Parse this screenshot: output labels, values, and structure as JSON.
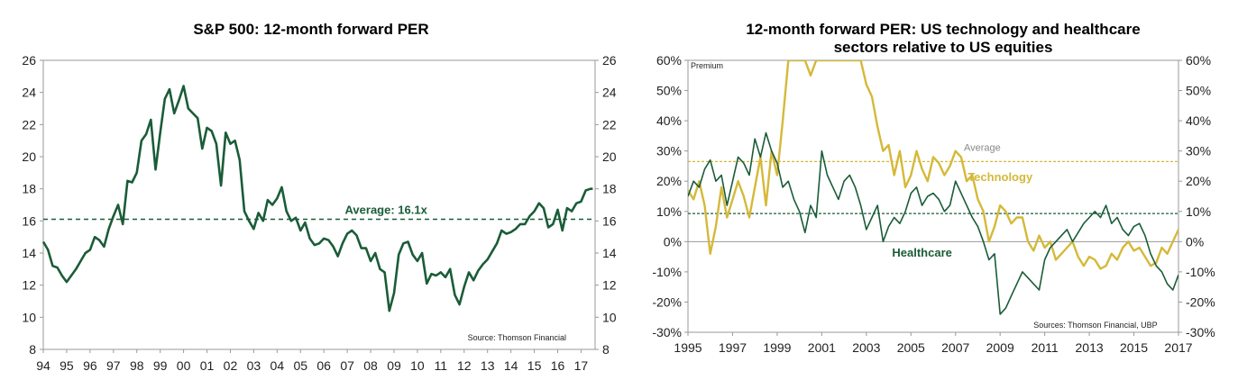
{
  "chart_data": [
    {
      "type": "line",
      "title": "S&P 500: 12-month forward PER",
      "xlabel": "",
      "ylabel": "",
      "ylim": [
        8,
        26
      ],
      "yticks": [
        8,
        10,
        12,
        14,
        16,
        18,
        20,
        22,
        24,
        26
      ],
      "xlim": [
        1994,
        2017.6
      ],
      "xtick_labels": [
        "94",
        "95",
        "96",
        "97",
        "98",
        "99",
        "00",
        "01",
        "02",
        "03",
        "04",
        "05",
        "06",
        "07",
        "08",
        "09",
        "10",
        "11",
        "12",
        "13",
        "14",
        "15",
        "16",
        "17"
      ],
      "average_label": "Average: 16.1x",
      "average_value": 16.1,
      "source": "Source: Thomson Financial",
      "colors": {
        "line": "#1a5c38",
        "average": "#1a5c38"
      },
      "series": [
        {
          "name": "S&P 500 12-month forward PER",
          "x": [
            1994.0,
            1994.2,
            1994.4,
            1994.6,
            1994.8,
            1995.0,
            1995.2,
            1995.4,
            1995.6,
            1995.8,
            1996.0,
            1996.2,
            1996.4,
            1996.6,
            1996.8,
            1997.0,
            1997.2,
            1997.4,
            1997.6,
            1997.8,
            1998.0,
            1998.2,
            1998.4,
            1998.6,
            1998.8,
            1999.0,
            1999.2,
            1999.4,
            1999.6,
            1999.8,
            2000.0,
            2000.2,
            2000.4,
            2000.6,
            2000.8,
            2001.0,
            2001.2,
            2001.4,
            2001.6,
            2001.8,
            2002.0,
            2002.2,
            2002.4,
            2002.6,
            2002.8,
            2003.0,
            2003.2,
            2003.4,
            2003.6,
            2003.8,
            2004.0,
            2004.2,
            2004.4,
            2004.6,
            2004.8,
            2005.0,
            2005.2,
            2005.4,
            2005.6,
            2005.8,
            2006.0,
            2006.2,
            2006.4,
            2006.6,
            2006.8,
            2007.0,
            2007.2,
            2007.4,
            2007.6,
            2007.8,
            2008.0,
            2008.2,
            2008.4,
            2008.6,
            2008.8,
            2009.0,
            2009.2,
            2009.4,
            2009.6,
            2009.8,
            2010.0,
            2010.2,
            2010.4,
            2010.6,
            2010.8,
            2011.0,
            2011.2,
            2011.4,
            2011.6,
            2011.8,
            2012.0,
            2012.2,
            2012.4,
            2012.6,
            2012.8,
            2013.0,
            2013.2,
            2013.4,
            2013.6,
            2013.8,
            2014.0,
            2014.2,
            2014.4,
            2014.6,
            2014.8,
            2015.0,
            2015.2,
            2015.4,
            2015.6,
            2015.8,
            2016.0,
            2016.2,
            2016.4,
            2016.6,
            2016.8,
            2017.0,
            2017.2,
            2017.4,
            2017.5
          ],
          "values": [
            14.7,
            14.2,
            13.2,
            13.1,
            12.6,
            12.2,
            12.6,
            13.0,
            13.5,
            14.0,
            14.2,
            15.0,
            14.8,
            14.4,
            15.5,
            16.3,
            17.0,
            15.8,
            18.5,
            18.4,
            19.0,
            21.0,
            21.4,
            22.3,
            19.2,
            21.5,
            23.6,
            24.2,
            22.7,
            23.5,
            24.4,
            23.0,
            22.7,
            22.4,
            20.5,
            21.8,
            21.6,
            20.8,
            18.2,
            21.5,
            20.8,
            21.0,
            19.8,
            16.6,
            16.0,
            15.5,
            16.5,
            16.0,
            17.3,
            17.0,
            17.4,
            18.1,
            16.6,
            16.0,
            16.2,
            15.4,
            15.9,
            14.9,
            14.5,
            14.6,
            14.9,
            14.8,
            14.4,
            13.8,
            14.6,
            15.2,
            15.4,
            15.1,
            14.3,
            14.3,
            13.5,
            14.0,
            13.0,
            12.8,
            10.4,
            11.5,
            13.9,
            14.6,
            14.7,
            13.9,
            13.5,
            14.0,
            12.1,
            12.7,
            12.6,
            12.8,
            12.5,
            13.0,
            11.4,
            10.8,
            11.9,
            12.8,
            12.3,
            12.9,
            13.3,
            13.6,
            14.1,
            14.6,
            15.4,
            15.2,
            15.3,
            15.5,
            15.8,
            15.8,
            16.3,
            16.6,
            17.1,
            16.8,
            15.6,
            15.8,
            16.7,
            15.4,
            16.8,
            16.6,
            17.1,
            17.2,
            17.9,
            18.0,
            18.0
          ]
        }
      ]
    },
    {
      "type": "line",
      "title_lines": [
        "12-month forward PER: US technology and healthcare",
        "sectors relative to US equities"
      ],
      "xlabel": "",
      "ylabel": "Premium",
      "ylim": [
        -30,
        60
      ],
      "yticks": [
        -30,
        -20,
        -10,
        0,
        10,
        20,
        30,
        40,
        50,
        60
      ],
      "ytick_labels": [
        "-30%",
        "-20%",
        "-10%",
        "0%",
        "10%",
        "20%",
        "30%",
        "40%",
        "50%",
        "60%"
      ],
      "xlim": [
        1995,
        2017
      ],
      "xtick_labels": [
        "1995",
        "1997",
        "1999",
        "2001",
        "2003",
        "2005",
        "2007",
        "2009",
        "2011",
        "2013",
        "2015",
        "2017"
      ],
      "average_label": "Average",
      "source": "Sources: Thomson Financial, UBP",
      "colors": {
        "technology": "#d4b93a",
        "healthcare": "#1a5c38",
        "tech_average": "#d4b93a",
        "health_average": "#1a5c38"
      },
      "series": [
        {
          "name": "Technology",
          "average": 26.5,
          "x": [
            1995.0,
            1995.25,
            1995.5,
            1995.75,
            1996.0,
            1996.25,
            1996.5,
            1996.75,
            1997.0,
            1997.25,
            1997.5,
            1997.75,
            1998.0,
            1998.25,
            1998.5,
            1998.75,
            1999.0,
            1999.25,
            1999.5,
            1999.75,
            2000.0,
            2000.25,
            2000.5,
            2000.75,
            2001.0,
            2001.25,
            2001.5,
            2001.75,
            2002.0,
            2002.25,
            2002.5,
            2002.75,
            2003.0,
            2003.25,
            2003.5,
            2003.75,
            2004.0,
            2004.25,
            2004.5,
            2004.75,
            2005.0,
            2005.25,
            2005.5,
            2005.75,
            2006.0,
            2006.25,
            2006.5,
            2006.75,
            2007.0,
            2007.25,
            2007.5,
            2007.75,
            2008.0,
            2008.25,
            2008.5,
            2008.75,
            2009.0,
            2009.25,
            2009.5,
            2009.75,
            2010.0,
            2010.25,
            2010.5,
            2010.75,
            2011.0,
            2011.25,
            2011.5,
            2011.75,
            2012.0,
            2012.25,
            2012.5,
            2012.75,
            2013.0,
            2013.25,
            2013.5,
            2013.75,
            2014.0,
            2014.25,
            2014.5,
            2014.75,
            2015.0,
            2015.25,
            2015.5,
            2015.75,
            2016.0,
            2016.25,
            2016.5,
            2016.75,
            2017.0
          ],
          "values": [
            17,
            14,
            20,
            12,
            -4,
            5,
            18,
            8,
            14,
            20,
            15,
            8,
            18,
            28,
            12,
            30,
            22,
            40,
            60,
            60,
            60,
            60,
            55,
            60,
            60,
            60,
            60,
            60,
            60,
            60,
            60,
            60,
            52,
            48,
            38,
            30,
            32,
            22,
            30,
            18,
            22,
            30,
            24,
            20,
            28,
            26,
            22,
            25,
            30,
            28,
            20,
            22,
            14,
            10,
            0,
            5,
            12,
            10,
            6,
            8,
            8,
            0,
            -3,
            2,
            -2,
            0,
            -6,
            -4,
            -2,
            0,
            -5,
            -8,
            -5,
            -6,
            -9,
            -8,
            -4,
            -6,
            -2,
            0,
            -3,
            -2,
            -5,
            -8,
            -7,
            -2,
            -4,
            0,
            4
          ]
        },
        {
          "name": "Healthcare",
          "average": 9.3,
          "x": [
            1995.0,
            1995.25,
            1995.5,
            1995.75,
            1996.0,
            1996.25,
            1996.5,
            1996.75,
            1997.0,
            1997.25,
            1997.5,
            1997.75,
            1998.0,
            1998.25,
            1998.5,
            1998.75,
            1999.0,
            1999.25,
            1999.5,
            1999.75,
            2000.0,
            2000.25,
            2000.5,
            2000.75,
            2001.0,
            2001.25,
            2001.5,
            2001.75,
            2002.0,
            2002.25,
            2002.5,
            2002.75,
            2003.0,
            2003.25,
            2003.5,
            2003.75,
            2004.0,
            2004.25,
            2004.5,
            2004.75,
            2005.0,
            2005.25,
            2005.5,
            2005.75,
            2006.0,
            2006.25,
            2006.5,
            2006.75,
            2007.0,
            2007.25,
            2007.5,
            2007.75,
            2008.0,
            2008.25,
            2008.5,
            2008.75,
            2009.0,
            2009.25,
            2009.5,
            2009.75,
            2010.0,
            2010.25,
            2010.5,
            2010.75,
            2011.0,
            2011.25,
            2011.5,
            2011.75,
            2012.0,
            2012.25,
            2012.5,
            2012.75,
            2013.0,
            2013.25,
            2013.5,
            2013.75,
            2014.0,
            2014.25,
            2014.5,
            2014.75,
            2015.0,
            2015.25,
            2015.5,
            2015.75,
            2016.0,
            2016.25,
            2016.5,
            2016.75,
            2017.0
          ],
          "values": [
            15,
            20,
            18,
            24,
            27,
            20,
            22,
            12,
            20,
            28,
            26,
            22,
            34,
            28,
            36,
            30,
            26,
            18,
            20,
            14,
            10,
            3,
            12,
            8,
            30,
            22,
            18,
            14,
            20,
            22,
            18,
            12,
            4,
            8,
            12,
            0,
            5,
            8,
            6,
            10,
            16,
            18,
            12,
            15,
            16,
            14,
            10,
            12,
            20,
            16,
            12,
            8,
            5,
            0,
            -6,
            -4,
            -24,
            -22,
            -18,
            -14,
            -10,
            -12,
            -14,
            -16,
            -6,
            -2,
            0,
            2,
            4,
            0,
            3,
            6,
            8,
            10,
            8,
            12,
            6,
            8,
            4,
            2,
            5,
            6,
            2,
            -4,
            -8,
            -10,
            -14,
            -16,
            -11
          ]
        }
      ],
      "series_labels": {
        "technology": "Technology",
        "healthcare": "Healthcare"
      }
    }
  ]
}
